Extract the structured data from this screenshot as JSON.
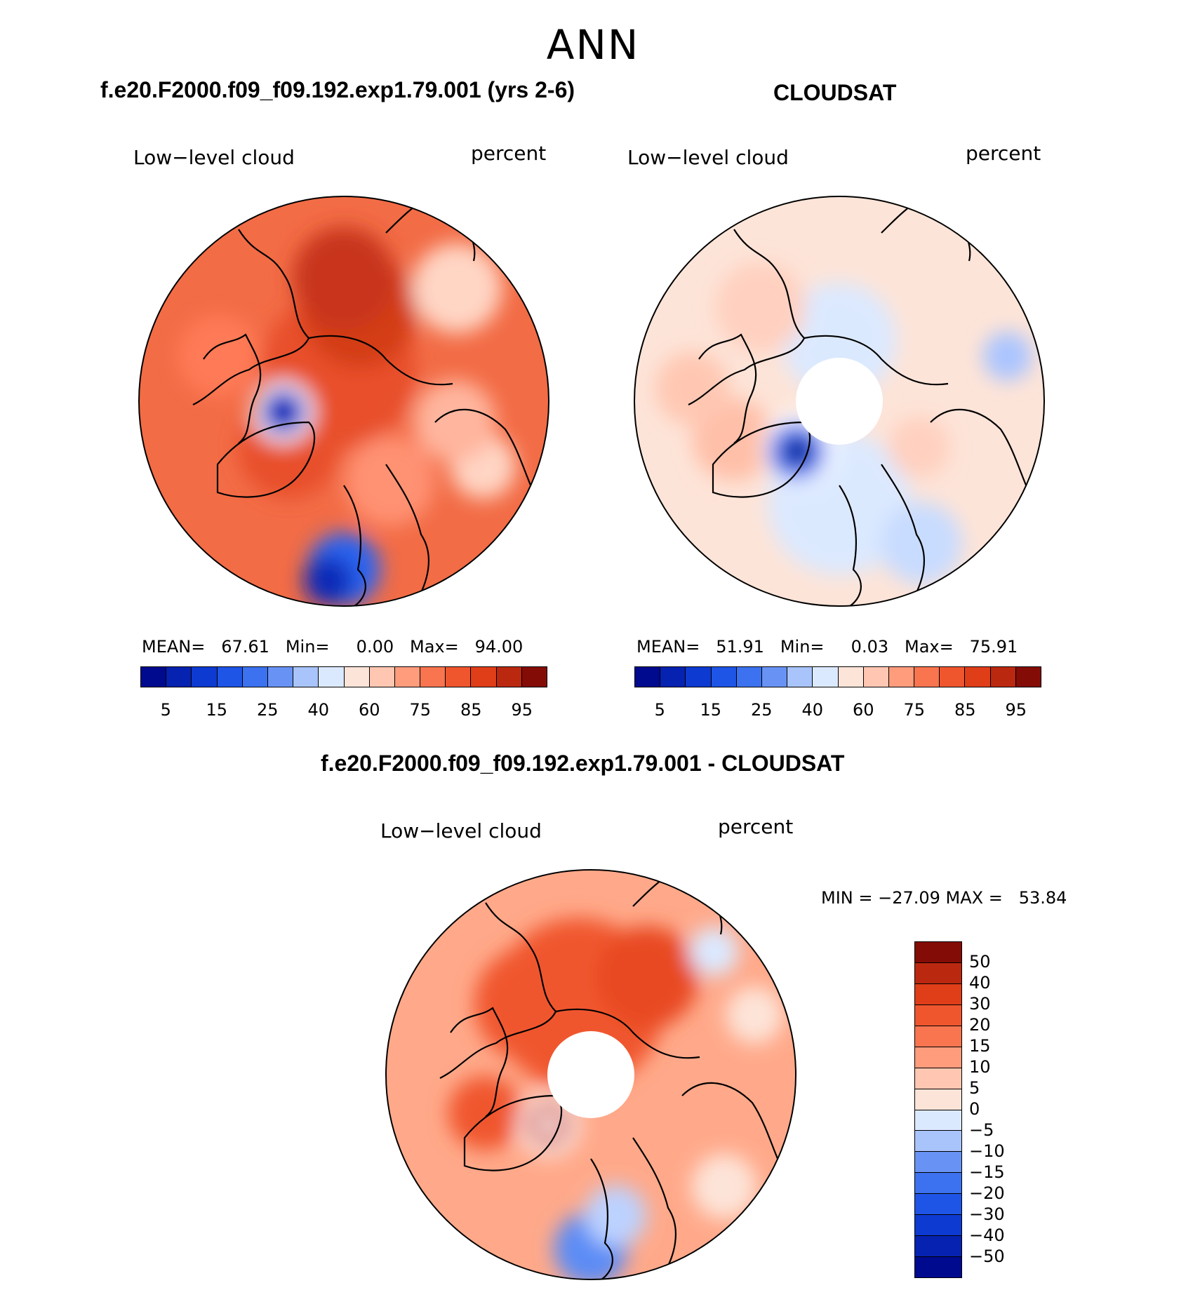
{
  "season": "ANN",
  "panels": [
    {
      "id": "model",
      "title": "f.e20.F2000.f09_f09.192.exp1.79.001 (yrs 2-6)",
      "left_label": "Low−level cloud",
      "right_label": "percent",
      "stats": "MEAN=   67.61   Min=     0.00   Max=   94.00",
      "base_color": "#f26c46",
      "pole_hole": false,
      "blobs": [
        {
          "lon": 100,
          "colat": 0.15,
          "r": 0.38,
          "color": "#e8502a"
        },
        {
          "lon": 80,
          "colat": 0.45,
          "r": 0.28,
          "color": "#d43d17"
        },
        {
          "lon": 90,
          "colat": 0.6,
          "r": 0.25,
          "color": "#c8341a"
        },
        {
          "lon": 300,
          "colat": 0.45,
          "r": 0.22,
          "color": "#ff9273"
        },
        {
          "lon": 270,
          "colat": 0.82,
          "r": 0.18,
          "color": "#2a63f0"
        },
        {
          "lon": 265,
          "colat": 0.88,
          "r": 0.12,
          "color": "#0a2ab8"
        },
        {
          "lon": 335,
          "colat": 0.75,
          "r": 0.16,
          "color": "#ffd5c4"
        },
        {
          "lon": 350,
          "colat": 0.55,
          "r": 0.2,
          "color": "#ffb59e"
        },
        {
          "lon": 45,
          "colat": 0.78,
          "r": 0.22,
          "color": "#ffd5c4"
        },
        {
          "lon": 220,
          "colat": 0.35,
          "r": 0.25,
          "color": "#e8502a"
        },
        {
          "lon": 160,
          "colat": 0.65,
          "r": 0.2,
          "color": "#ff7a57"
        },
        {
          "lon": 190,
          "colat": 0.3,
          "r": 0.15,
          "color": "#ffffff"
        },
        {
          "lon": 190,
          "colat": 0.3,
          "r": 0.11,
          "color": "#2244dd"
        },
        {
          "lon": 190,
          "colat": 0.3,
          "r": 0.05,
          "color": "#000a8f"
        }
      ]
    },
    {
      "id": "obs",
      "title": "CLOUDSAT",
      "left_label": "Low−level cloud",
      "right_label": "percent",
      "stats": "MEAN=   51.91   Min=     0.03   Max=   75.91",
      "base_color": "#fde4d8",
      "pole_hole": true,
      "blobs": [
        {
          "lon": 270,
          "colat": 0.5,
          "r": 0.35,
          "color": "#dbe9ff"
        },
        {
          "lon": 300,
          "colat": 0.8,
          "r": 0.2,
          "color": "#c8dcff"
        },
        {
          "lon": 15,
          "colat": 0.85,
          "r": 0.12,
          "color": "#aac5ff"
        },
        {
          "lon": 90,
          "colat": 0.3,
          "r": 0.28,
          "color": "#dbe9ff"
        },
        {
          "lon": 200,
          "colat": 0.55,
          "r": 0.2,
          "color": "#ffbfa8"
        },
        {
          "lon": 130,
          "colat": 0.6,
          "r": 0.22,
          "color": "#ffd0bf"
        },
        {
          "lon": 330,
          "colat": 0.45,
          "r": 0.15,
          "color": "#ffd0bf"
        },
        {
          "lon": 175,
          "colat": 0.72,
          "r": 0.18,
          "color": "#ffc7b2"
        },
        {
          "lon": 230,
          "colat": 0.3,
          "r": 0.18,
          "color": "#ffffff"
        },
        {
          "lon": 230,
          "colat": 0.32,
          "r": 0.14,
          "color": "#4a78f5"
        },
        {
          "lon": 230,
          "colat": 0.32,
          "r": 0.07,
          "color": "#000a8f"
        }
      ]
    },
    {
      "id": "diff",
      "title": "f.e20.F2000.f09_f09.192.exp1.79.001 - CLOUDSAT",
      "left_label": "Low−level cloud",
      "right_label": "percent",
      "stats": "MIN = −27.09 MAX =   53.84",
      "base_color": "#ffa98a",
      "pole_hole": true,
      "blobs": [
        {
          "lon": 100,
          "colat": 0.35,
          "r": 0.42,
          "color": "#f0562e"
        },
        {
          "lon": 60,
          "colat": 0.55,
          "r": 0.25,
          "color": "#e84a22"
        },
        {
          "lon": 130,
          "colat": 0.45,
          "r": 0.28,
          "color": "#f0562e"
        },
        {
          "lon": 270,
          "colat": 0.85,
          "r": 0.18,
          "color": "#5b8cf5"
        },
        {
          "lon": 280,
          "colat": 0.7,
          "r": 0.15,
          "color": "#bcd2ff"
        },
        {
          "lon": 320,
          "colat": 0.85,
          "r": 0.16,
          "color": "#fde4d8"
        },
        {
          "lon": 20,
          "colat": 0.85,
          "r": 0.14,
          "color": "#fde4d8"
        },
        {
          "lon": 45,
          "colat": 0.85,
          "r": 0.12,
          "color": "#dbe9ff"
        },
        {
          "lon": 200,
          "colat": 0.55,
          "r": 0.18,
          "color": "#f0562e"
        },
        {
          "lon": 230,
          "colat": 0.32,
          "r": 0.15,
          "color": "#ffffff"
        },
        {
          "lon": 230,
          "colat": 0.32,
          "r": 0.11,
          "color": "#d43d17"
        },
        {
          "lon": 230,
          "colat": 0.32,
          "r": 0.05,
          "color": "#ffffff"
        }
      ]
    }
  ],
  "colorbar_abs": {
    "colors": [
      "#000a8f",
      "#0622b0",
      "#0d3ad0",
      "#1f55e6",
      "#3c72f0",
      "#6893f5",
      "#a9c4fb",
      "#dbe9ff",
      "#fde4d8",
      "#ffc7b2",
      "#ff9c7c",
      "#f8754f",
      "#f0562e",
      "#df3e18",
      "#bb2810",
      "#840c06"
    ],
    "ticks": [
      "5",
      "15",
      "25",
      "40",
      "60",
      "75",
      "85",
      "95"
    ]
  },
  "colorbar_diff": {
    "colors": [
      "#840c06",
      "#bb2810",
      "#df3e18",
      "#f0562e",
      "#f8754f",
      "#ff9c7c",
      "#ffc7b2",
      "#fde4d8",
      "#dbe9ff",
      "#a9c4fb",
      "#6893f5",
      "#3c72f0",
      "#1f55e6",
      "#0d3ad0",
      "#0622b0",
      "#000a8f"
    ],
    "ticks": [
      "50",
      "40",
      "30",
      "20",
      "15",
      "10",
      "5",
      "0",
      "−5",
      "−10",
      "−15",
      "−20",
      "−30",
      "−40",
      "−50"
    ]
  }
}
